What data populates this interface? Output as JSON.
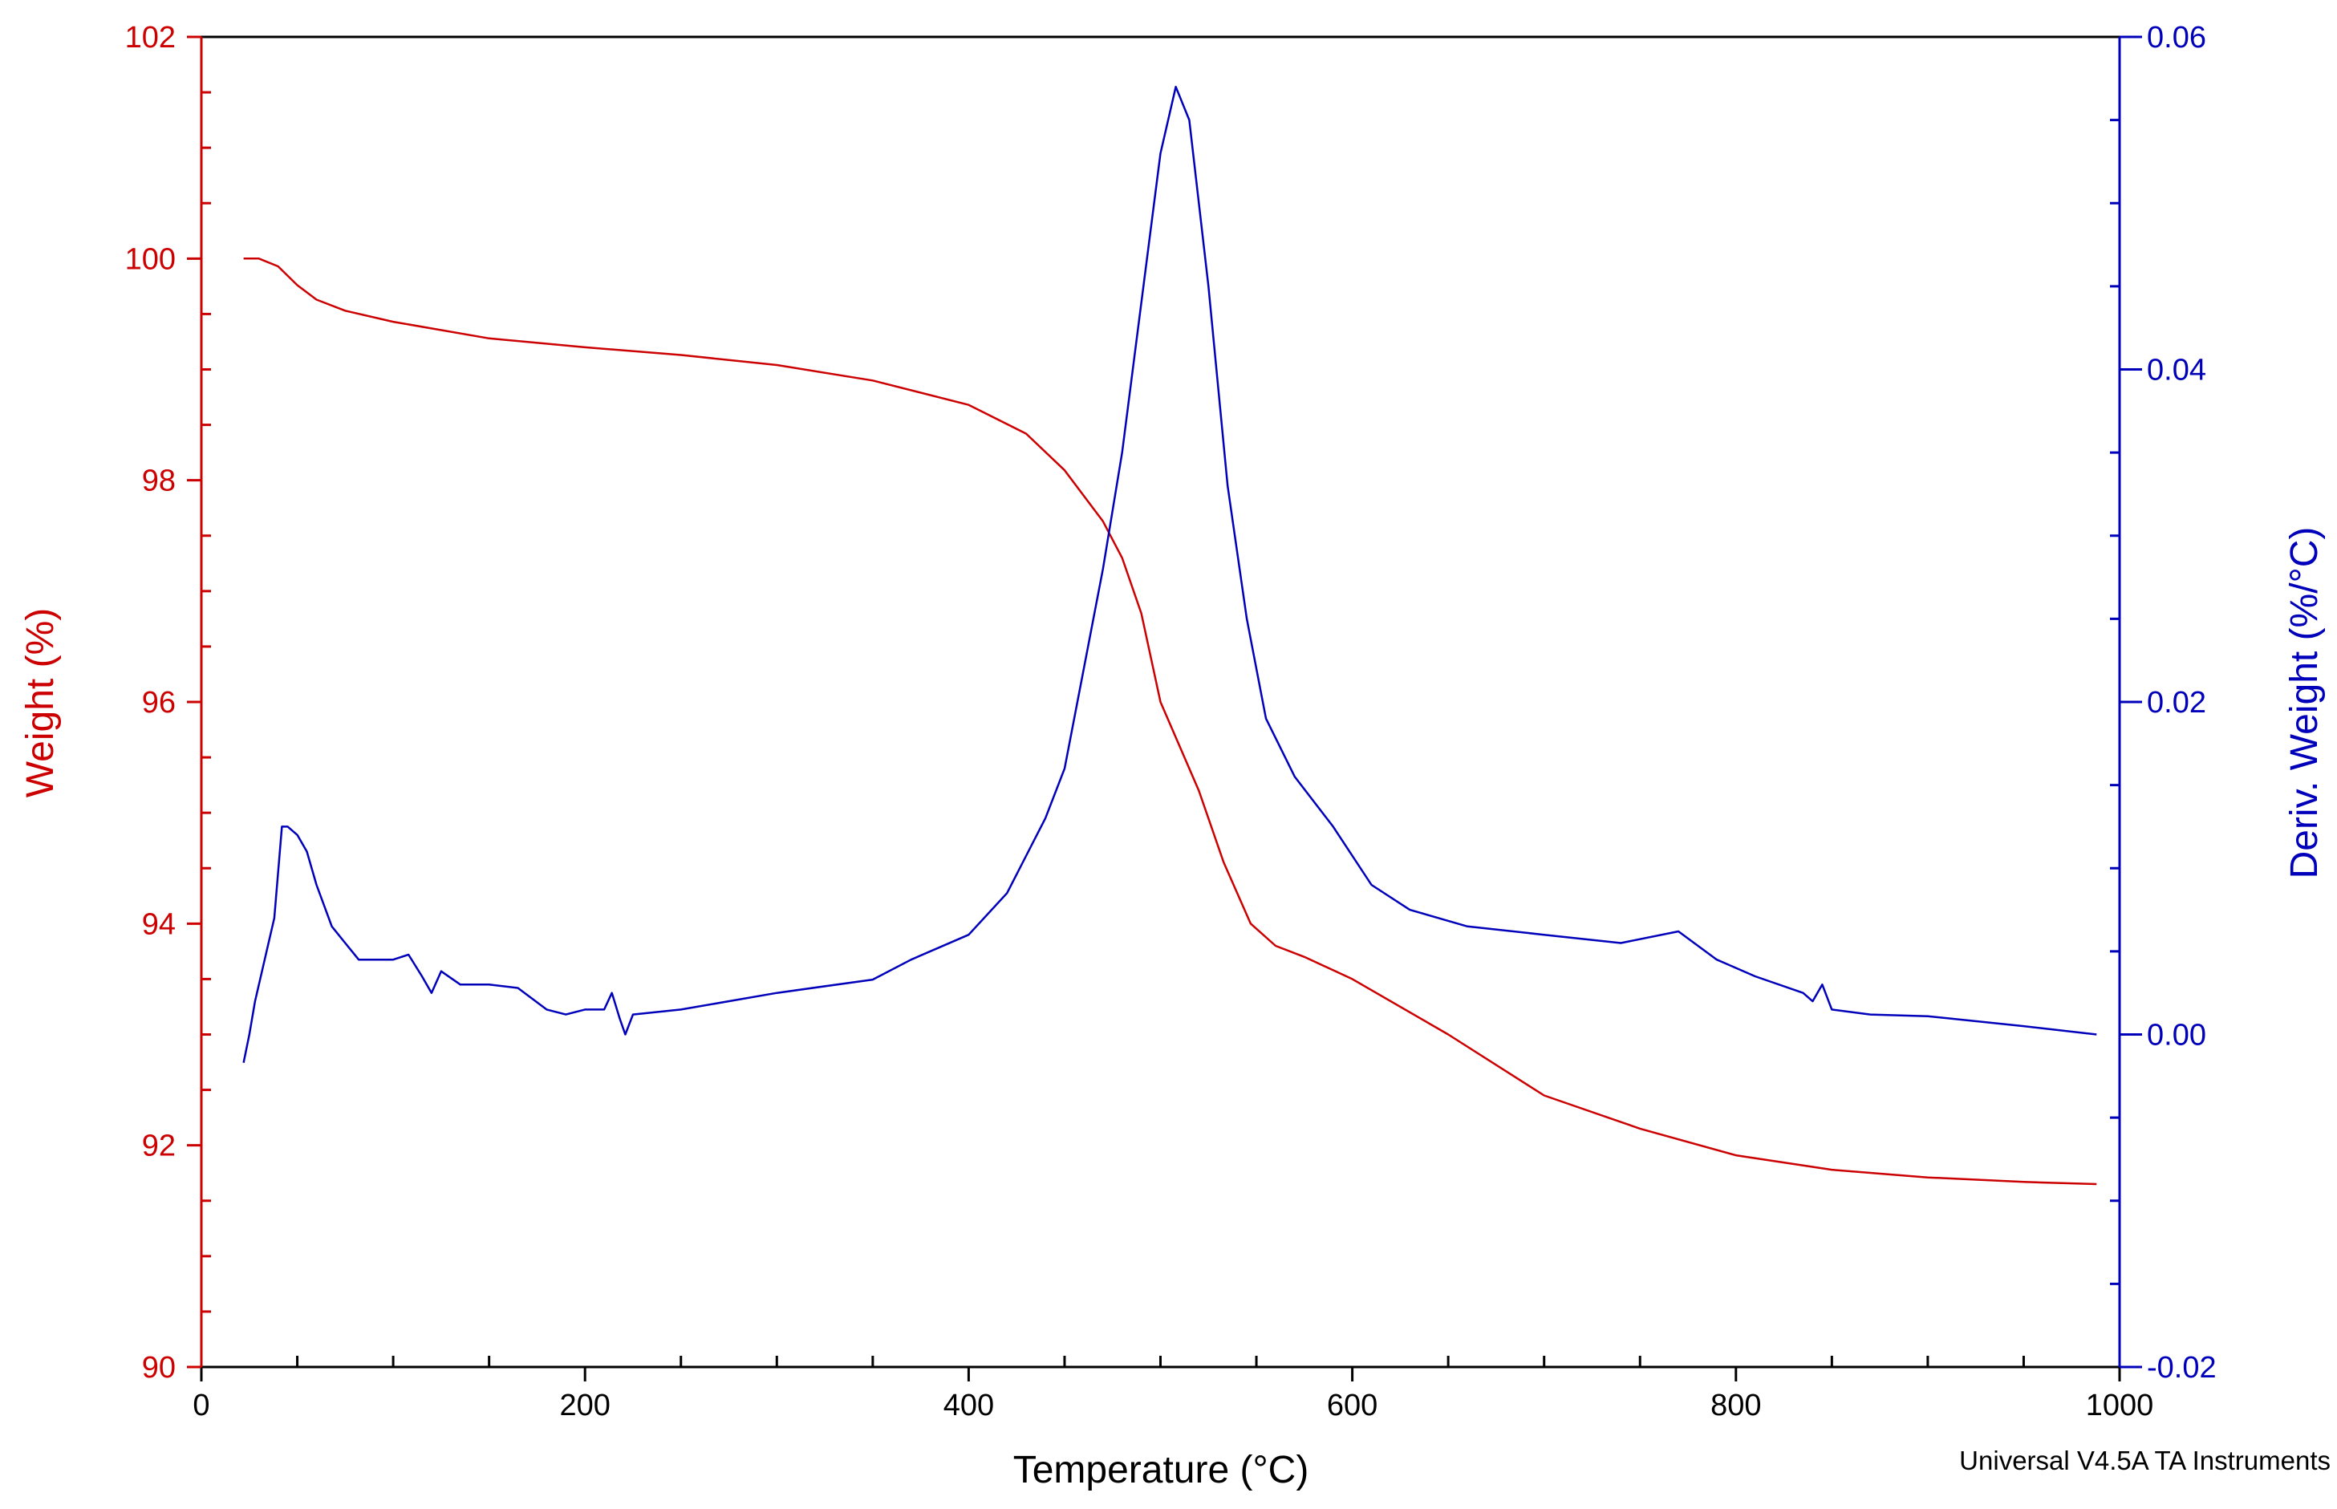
{
  "chart_data": {
    "type": "line",
    "title": "",
    "xlabel": "Temperature (°C)",
    "ylabel": "Weight (%)",
    "y2label": "Deriv. Weight (%/°C)",
    "xlim": [
      0,
      1000
    ],
    "ylim": [
      90,
      102
    ],
    "y2lim": [
      -0.02,
      0.06
    ],
    "xticks": [
      "0",
      "200",
      "400",
      "600",
      "800",
      "1000"
    ],
    "yticks": [
      "90",
      "92",
      "94",
      "96",
      "98",
      "100",
      "102"
    ],
    "y2ticks": [
      "-0.02",
      "0.00",
      "0.02",
      "0.04",
      "0.06"
    ],
    "grid": false,
    "credit": "Universal V4.5A TA Instruments",
    "colors": {
      "weight": "#cc0000",
      "deriv": "#0000bb",
      "axis": "#000000"
    },
    "series": [
      {
        "name": "Weight (%)",
        "axis": "left",
        "x": [
          22,
          30,
          40,
          50,
          60,
          75,
          100,
          150,
          200,
          250,
          300,
          350,
          400,
          430,
          450,
          470,
          480,
          490,
          500,
          510,
          520,
          533,
          547,
          560,
          575,
          600,
          650,
          700,
          750,
          800,
          850,
          900,
          950,
          988
        ],
        "y": [
          100.0,
          100.0,
          99.93,
          99.76,
          99.63,
          99.53,
          99.43,
          99.28,
          99.2,
          99.13,
          99.04,
          98.9,
          98.68,
          98.42,
          98.09,
          97.63,
          97.3,
          96.8,
          96.0,
          95.6,
          95.2,
          94.55,
          94.0,
          93.8,
          93.7,
          93.5,
          93.0,
          92.45,
          92.15,
          91.91,
          91.78,
          91.71,
          91.67,
          91.65
        ]
      },
      {
        "name": "Deriv. Weight (%/°C)",
        "axis": "right",
        "x": [
          22,
          25,
          28,
          32,
          38,
          42,
          45,
          50,
          55,
          60,
          68,
          75,
          82,
          90,
          100,
          108,
          115,
          120,
          125,
          135,
          150,
          165,
          180,
          190,
          200,
          210,
          214,
          218,
          221,
          225,
          250,
          300,
          350,
          370,
          400,
          420,
          440,
          450,
          460,
          470,
          480,
          490,
          500,
          508,
          515,
          525,
          535,
          545,
          555,
          570,
          590,
          610,
          630,
          660,
          700,
          740,
          770,
          790,
          810,
          835,
          840,
          845,
          850,
          870,
          900,
          950,
          988
        ],
        "y": [
          -0.0017,
          0.0,
          0.002,
          0.004,
          0.007,
          0.0125,
          0.0125,
          0.012,
          0.011,
          0.009,
          0.0065,
          0.0055,
          0.0045,
          0.0045,
          0.0045,
          0.0048,
          0.0035,
          0.0025,
          0.0038,
          0.003,
          0.003,
          0.0028,
          0.0015,
          0.0012,
          0.0015,
          0.0015,
          0.0025,
          0.001,
          0.0,
          0.0012,
          0.0015,
          0.0025,
          0.0033,
          0.0045,
          0.006,
          0.0085,
          0.013,
          0.016,
          0.022,
          0.028,
          0.035,
          0.044,
          0.053,
          0.057,
          0.055,
          0.045,
          0.033,
          0.025,
          0.019,
          0.0155,
          0.0125,
          0.009,
          0.0075,
          0.0065,
          0.006,
          0.0055,
          0.0062,
          0.0045,
          0.0035,
          0.0025,
          0.002,
          0.003,
          0.0015,
          0.0012,
          0.0011,
          0.0005,
          0.0
        ]
      }
    ]
  }
}
